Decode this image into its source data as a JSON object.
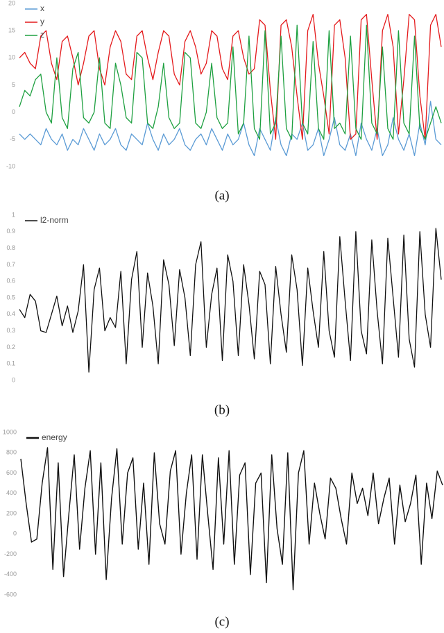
{
  "chart_data": [
    {
      "type": "line",
      "caption": "(a)",
      "ylim": [
        -10,
        20
      ],
      "yticks": [
        -10,
        -5,
        0,
        5,
        10,
        15,
        20
      ],
      "legend": "top-left",
      "series": [
        {
          "name": "x",
          "color": "#5b9bd5",
          "values": [
            -4,
            -5,
            -4,
            -5,
            -6,
            -3,
            -5,
            -6,
            -4,
            -7,
            -5,
            -6,
            -3,
            -5,
            -7,
            -4,
            -6,
            -5,
            -3,
            -6,
            -7,
            -4,
            -5,
            -6,
            -2,
            -5,
            -7,
            -4,
            -6,
            -5,
            -3,
            -6,
            -7,
            -5,
            -4,
            -6,
            -3,
            -5,
            -7,
            -4,
            -6,
            -5,
            -2,
            -6,
            -8,
            -3,
            -5,
            -7,
            -1,
            -6,
            -8,
            -4,
            -5,
            -2,
            -7,
            -6,
            -3,
            -8,
            -5,
            -1,
            -6,
            -7,
            -4,
            -8,
            -2,
            -5,
            -7,
            -3,
            -8,
            -6,
            -1,
            -5,
            -7,
            -4,
            -8,
            -2,
            -6,
            2,
            -5,
            -6
          ]
        },
        {
          "name": "y",
          "color": "#e41a1c",
          "values": [
            10,
            11,
            9,
            8,
            14,
            15,
            9,
            6,
            13,
            14,
            10,
            5,
            9,
            14,
            15,
            8,
            5,
            12,
            15,
            13,
            7,
            6,
            14,
            15,
            10,
            6,
            11,
            15,
            14,
            7,
            5,
            13,
            15,
            12,
            7,
            9,
            15,
            14,
            8,
            6,
            14,
            15,
            10,
            7,
            8,
            17,
            16,
            4,
            -5,
            16,
            17,
            12,
            3,
            -5,
            15,
            18,
            9,
            3,
            -4,
            16,
            17,
            10,
            -5,
            -4,
            17,
            18,
            6,
            -5,
            15,
            18,
            12,
            -4,
            6,
            18,
            17,
            3,
            -5,
            16,
            18,
            12
          ]
        },
        {
          "name": "z",
          "color": "#1ea040",
          "values": [
            1,
            4,
            3,
            6,
            7,
            0,
            -2,
            10,
            -1,
            -3,
            8,
            11,
            -1,
            -2,
            0,
            10,
            -2,
            -3,
            9,
            5,
            -1,
            -2,
            11,
            10,
            -2,
            -3,
            1,
            9,
            -1,
            -3,
            -2,
            11,
            10,
            -2,
            -3,
            0,
            9,
            -1,
            -3,
            -2,
            12,
            -4,
            -2,
            14,
            -3,
            -5,
            15,
            -4,
            -2,
            14,
            -3,
            -5,
            16,
            -2,
            -4,
            13,
            -3,
            -5,
            15,
            -3,
            -2,
            -4,
            14,
            -3,
            -5,
            16,
            -2,
            -4,
            12,
            -3,
            -5,
            15,
            -2,
            -4,
            14,
            -3,
            -5,
            -2,
            1,
            -2
          ]
        }
      ]
    },
    {
      "type": "line",
      "caption": "(b)",
      "ylim": [
        0,
        1
      ],
      "yticks": [
        0,
        0.1,
        0.2,
        0.3,
        0.4,
        0.5,
        0.6,
        0.7,
        0.8,
        0.9,
        1
      ],
      "legend": "top-left",
      "series": [
        {
          "name": "l2-norm",
          "color": "#111111",
          "values": [
            0.43,
            0.38,
            0.52,
            0.48,
            0.3,
            0.29,
            0.4,
            0.51,
            0.33,
            0.45,
            0.29,
            0.42,
            0.7,
            0.05,
            0.55,
            0.68,
            0.3,
            0.38,
            0.32,
            0.66,
            0.1,
            0.61,
            0.78,
            0.2,
            0.65,
            0.45,
            0.1,
            0.73,
            0.58,
            0.21,
            0.67,
            0.5,
            0.15,
            0.7,
            0.84,
            0.2,
            0.52,
            0.68,
            0.12,
            0.76,
            0.6,
            0.15,
            0.7,
            0.46,
            0.13,
            0.66,
            0.58,
            0.1,
            0.69,
            0.4,
            0.17,
            0.76,
            0.55,
            0.09,
            0.68,
            0.42,
            0.2,
            0.78,
            0.3,
            0.14,
            0.87,
            0.48,
            0.12,
            0.9,
            0.3,
            0.16,
            0.85,
            0.42,
            0.1,
            0.86,
            0.5,
            0.14,
            0.88,
            0.25,
            0.08,
            0.9,
            0.4,
            0.2,
            0.92,
            0.61
          ]
        }
      ]
    },
    {
      "type": "line",
      "caption": "(c)",
      "ylim": [
        -600,
        1000
      ],
      "yticks": [
        -600,
        -400,
        -200,
        0,
        200,
        400,
        600,
        800,
        1000
      ],
      "legend": "top-left",
      "series": [
        {
          "name": "energy",
          "color": "#111111",
          "values": [
            740,
            300,
            -80,
            -50,
            500,
            850,
            -350,
            700,
            -420,
            200,
            780,
            -150,
            450,
            820,
            -200,
            700,
            -450,
            350,
            840,
            -100,
            600,
            750,
            -150,
            500,
            -300,
            800,
            100,
            -100,
            620,
            820,
            -200,
            400,
            780,
            -250,
            780,
            200,
            -350,
            750,
            -100,
            820,
            -300,
            580,
            700,
            -400,
            500,
            600,
            -480,
            780,
            50,
            -300,
            800,
            -550,
            600,
            820,
            -100,
            500,
            200,
            -50,
            550,
            450,
            150,
            -100,
            600,
            300,
            450,
            180,
            600,
            100,
            350,
            550,
            -100,
            480,
            120,
            300,
            580,
            -300,
            500,
            150,
            620,
            480
          ]
        }
      ]
    }
  ]
}
